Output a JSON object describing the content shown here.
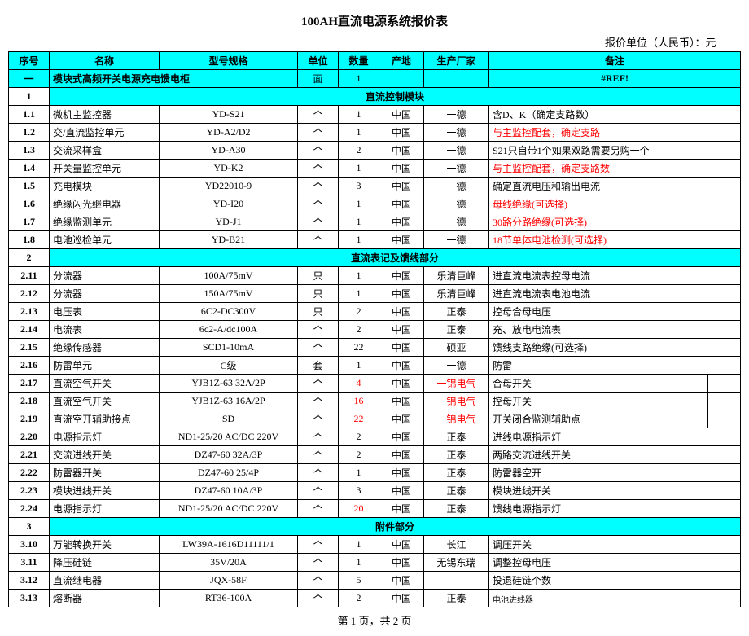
{
  "title": "100AH直流电源系统报价表",
  "unit_text": "报价单位（人民币）：元",
  "footer": "第 1 页，共 2 页",
  "columns": [
    "序号",
    "名称",
    "型号规格",
    "单位",
    "数量",
    "产地",
    "生产厂家",
    "备注"
  ],
  "main_section": {
    "idx": "一",
    "name": "模块式高频开关电源充电馈电柜",
    "unit": "面",
    "qty": "1",
    "remark": "#REF!"
  },
  "sections": [
    {
      "idx": "1",
      "label": "直流控制模块",
      "rows": [
        {
          "idx": "1.1",
          "name": "微机主监控器",
          "model": "YD-S21",
          "unit": "个",
          "qty": "1",
          "origin": "中国",
          "mfr": "一德",
          "remark": "含D、K（确定支路数）"
        },
        {
          "idx": "1.2",
          "name": "交/直流监控单元",
          "model": "YD-A2/D2",
          "unit": "个",
          "qty": "1",
          "origin": "中国",
          "mfr": "一德",
          "remark": "与主监控配套，确定支路",
          "remark_red": true
        },
        {
          "idx": "1.3",
          "name": "交流采样盒",
          "model": "YD-A30",
          "unit": "个",
          "qty": "2",
          "origin": "中国",
          "mfr": "一德",
          "remark": "S21只自带1个如果双路需要另购一个"
        },
        {
          "idx": "1.4",
          "name": "开关量监控单元",
          "model": "YD-K2",
          "unit": "个",
          "qty": "1",
          "origin": "中国",
          "mfr": "一德",
          "remark": "与主监控配套，确定支路数",
          "remark_red": true
        },
        {
          "idx": "1.5",
          "name": "充电模块",
          "model": "YD22010-9",
          "unit": "个",
          "qty": "3",
          "origin": "中国",
          "mfr": "一德",
          "remark": "确定直流电压和输出电流"
        },
        {
          "idx": "1.6",
          "name": "绝缘闪光继电器",
          "model": "YD-I20",
          "unit": "个",
          "qty": "1",
          "origin": "中国",
          "mfr": "一德",
          "remark": "母线绝缘(可选择)",
          "remark_red": true
        },
        {
          "idx": "1.7",
          "name": "绝缘监测单元",
          "model": "YD-J1",
          "unit": "个",
          "qty": "1",
          "origin": "中国",
          "mfr": "一德",
          "remark": "30路分路绝缘(可选择)",
          "remark_red": true
        },
        {
          "idx": "1.8",
          "name": "电池巡检单元",
          "model": "YD-B21",
          "unit": "个",
          "qty": "1",
          "origin": "中国",
          "mfr": "一德",
          "remark": "18节单体电池检测(可选择)",
          "remark_red": true
        }
      ]
    },
    {
      "idx": "2",
      "label": "直流表记及馈线部分",
      "rows": [
        {
          "idx": "2.11",
          "name": "分流器",
          "model": "100A/75mV",
          "unit": "只",
          "qty": "1",
          "origin": "中国",
          "mfr": "乐清巨峰",
          "remark": "进直流电流表控母电流"
        },
        {
          "idx": "2.12",
          "name": "分流器",
          "model": "150A/75mV",
          "unit": "只",
          "qty": "1",
          "origin": "中国",
          "mfr": "乐清巨峰",
          "remark": "进直流电流表电池电流"
        },
        {
          "idx": "2.13",
          "name": "电压表",
          "model": "6C2-DC300V",
          "unit": "只",
          "qty": "2",
          "origin": "中国",
          "mfr": "正泰",
          "remark": "控母合母电压"
        },
        {
          "idx": "2.14",
          "name": "电流表",
          "model": "6c2-A/dc100A",
          "unit": "个",
          "qty": "2",
          "origin": "中国",
          "mfr": "正泰",
          "remark": "充、放电电流表"
        },
        {
          "idx": "2.15",
          "name": "绝缘传感器",
          "model": "SCD1-10mA",
          "unit": "个",
          "qty": "22",
          "origin": "中国",
          "mfr": "硕亚",
          "remark": "馈线支路绝缘(可选择)"
        },
        {
          "idx": "2.16",
          "name": "防雷单元",
          "model": "C级",
          "unit": "套",
          "qty": "1",
          "origin": "中国",
          "mfr": "一德",
          "remark": "防雷"
        },
        {
          "idx": "2.17",
          "name": "直流空气开关",
          "model": "YJB1Z-63  32A/2P",
          "unit": "个",
          "qty": "4",
          "qty_red": true,
          "origin": "中国",
          "mfr": "一锦电气",
          "mfr_red": true,
          "remark": "合母开关",
          "extra": true
        },
        {
          "idx": "2.18",
          "name": "直流空气开关",
          "model": "YJB1Z-63  16A/2P",
          "unit": "个",
          "qty": "16",
          "qty_red": true,
          "origin": "中国",
          "mfr": "一锦电气",
          "mfr_red": true,
          "remark": "控母开关",
          "extra": true
        },
        {
          "idx": "2.19",
          "name": "直流空开辅助接点",
          "model": "SD",
          "unit": "个",
          "qty": "22",
          "qty_red": true,
          "origin": "中国",
          "mfr": "一锦电气",
          "mfr_red": true,
          "remark": "开关闭合监测辅助点",
          "extra": true
        },
        {
          "idx": "2.20",
          "name": "电源指示灯",
          "model": "ND1-25/20 AC/DC 220V",
          "unit": "个",
          "qty": "2",
          "origin": "中国",
          "mfr": "正泰",
          "remark": "进线电源指示灯"
        },
        {
          "idx": "2.21",
          "name": "交流进线开关",
          "model": "DZ47-60 32A/3P",
          "unit": "个",
          "qty": "2",
          "origin": "中国",
          "mfr": "正泰",
          "remark": "两路交流进线开关"
        },
        {
          "idx": "2.22",
          "name": "防雷器开关",
          "model": "DZ47-60  25/4P",
          "unit": "个",
          "qty": "1",
          "origin": "中国",
          "mfr": "正泰",
          "remark": "防雷器空开"
        },
        {
          "idx": "2.23",
          "name": "模块进线开关",
          "model": "DZ47-60 10A/3P",
          "unit": "个",
          "qty": "3",
          "origin": "中国",
          "mfr": "正泰",
          "remark": "模块进线开关"
        },
        {
          "idx": "2.24",
          "name": "电源指示灯",
          "model": "ND1-25/20 AC/DC 220V",
          "unit": "个",
          "qty": "20",
          "qty_red": true,
          "origin": "中国",
          "mfr": "正泰",
          "remark": "馈线电源指示灯"
        }
      ]
    },
    {
      "idx": "3",
      "label": "附件部分",
      "rows": [
        {
          "idx": "3.10",
          "name": "万能转换开关",
          "model": "LW39A-1616D11111/1",
          "unit": "个",
          "qty": "1",
          "origin": "中国",
          "mfr": "长江",
          "remark": "调压开关"
        },
        {
          "idx": "3.11",
          "name": "降压硅链",
          "model": "35V/20A",
          "unit": "个",
          "qty": "1",
          "origin": "中国",
          "mfr": "无锡东瑞",
          "remark": "调整控母电压"
        },
        {
          "idx": "3.12",
          "name": "直流继电器",
          "model": "JQX-58F",
          "unit": "个",
          "qty": "5",
          "origin": "中国",
          "mfr": "",
          "remark": "投退硅链个数"
        },
        {
          "idx": "3.13",
          "name": "熔断器",
          "model": "RT36-100A",
          "unit": "个",
          "qty": "2",
          "origin": "中国",
          "mfr": "正泰",
          "remark": "电池进线器",
          "remark_small": true
        }
      ]
    }
  ]
}
